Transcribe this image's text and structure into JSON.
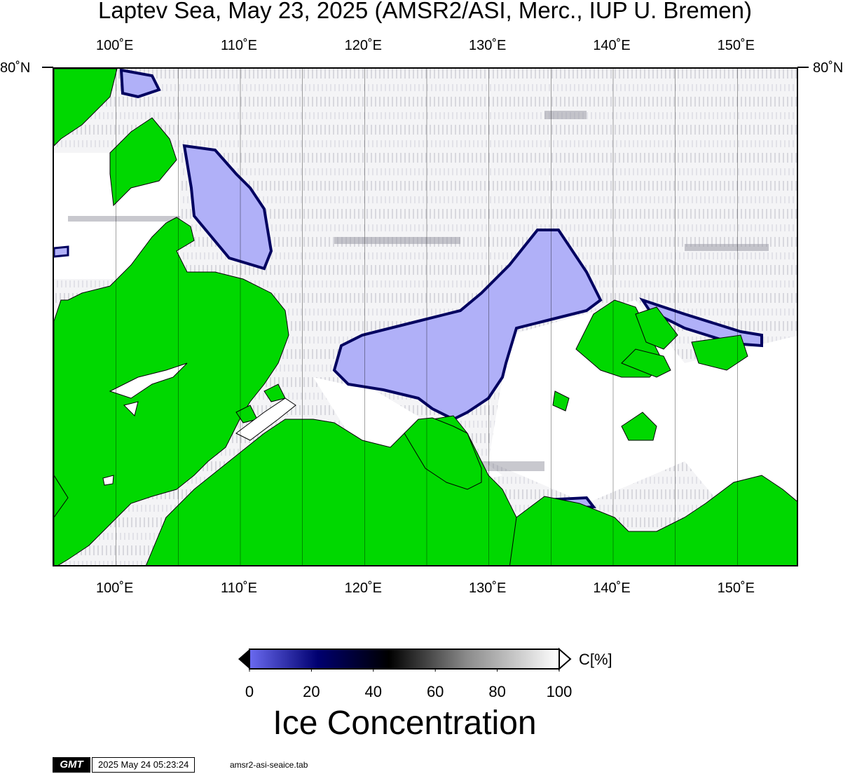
{
  "title": "Laptev Sea, May 23, 2025 (AMSR2/ASI, Merc., IUP U. Bremen)",
  "lon_ticks": [
    "100˚E",
    "110˚E",
    "120˚E",
    "130˚E",
    "140˚E",
    "150˚E"
  ],
  "lon_values": [
    100,
    110,
    120,
    130,
    140,
    150
  ],
  "lat_label": "80˚N",
  "map_extent": {
    "lon_min": 95,
    "lon_max": 155
  },
  "colors": {
    "land": "#00d800",
    "open_water": "#b0b0f8",
    "ice_full": "#ffffff",
    "ice_mid": "#000000",
    "ice_low": "#000060"
  },
  "colorbar": {
    "unit": "C[%]",
    "ticks": [
      "0",
      "20",
      "40",
      "60",
      "80",
      "100"
    ],
    "title": "Ice Concentration"
  },
  "footer": {
    "logo": "GMT",
    "timestamp": "2025 May 24 05:23:24",
    "source": "amsr2-asi-seaice.tab"
  }
}
